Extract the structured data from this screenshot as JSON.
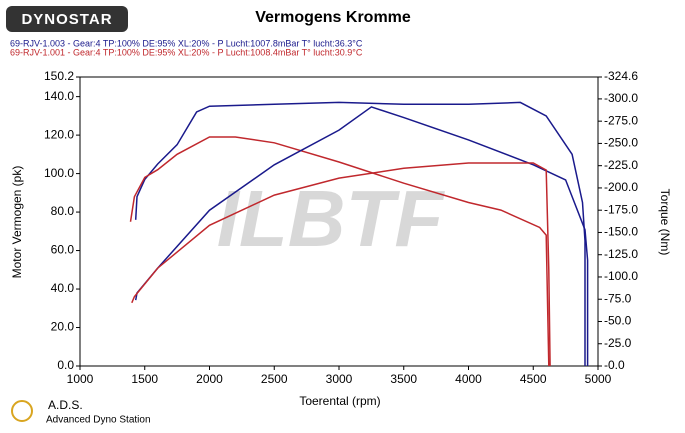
{
  "header": {
    "logo": "DYNOSTAR",
    "legend_lines": [
      {
        "text": "69-RJV-1.003 - Gear:4 TP:100% DE:95% XL:20%   - P Lucht:1007.8mBar T° lucht:36.3°C",
        "color": "#1a1a8c"
      },
      {
        "text": "69-RJV-1.001 - Gear:4 TP:100% DE:95% XL:20%   - P Lucht:1008.4mBar T° lucht:30.9°C",
        "color": "#c0282d"
      }
    ]
  },
  "footer": {
    "brand": "A.D.S.",
    "subtitle": "Advanced Dyno Station"
  },
  "watermark": "ILBTF",
  "chart_data": {
    "type": "line",
    "title": "Vermogens Kromme",
    "xlabel": "Toerental (rpm)",
    "ylabel": "Motor Vermogen (pk)",
    "y2label": "Torque (Nm)",
    "xlim": [
      1000,
      5000
    ],
    "xticks": [
      1000,
      1500,
      2000,
      2500,
      3000,
      3500,
      4000,
      4500,
      5000
    ],
    "ylim": [
      0,
      150.2
    ],
    "yticks": [
      {
        "value": 0,
        "label": "0.0"
      },
      {
        "value": 20,
        "label": "20.0"
      },
      {
        "value": 40,
        "label": "40.0"
      },
      {
        "value": 60,
        "label": "60.0"
      },
      {
        "value": 80,
        "label": "80.0"
      },
      {
        "value": 100,
        "label": "100.0"
      },
      {
        "value": 120,
        "label": "120.0"
      },
      {
        "value": 140,
        "label": "140.0"
      },
      {
        "value": 150.2,
        "label": "150.2"
      }
    ],
    "y2lim": [
      0,
      -324.6
    ],
    "y2ticks": [
      {
        "value": 0,
        "label": "-0.0"
      },
      {
        "value": -25,
        "label": "-25.0"
      },
      {
        "value": -50,
        "label": "-50.0"
      },
      {
        "value": -75,
        "label": "-75.0"
      },
      {
        "value": -100,
        "label": "-100.0"
      },
      {
        "value": -125,
        "label": "-125.0"
      },
      {
        "value": -150,
        "label": "-150.0"
      },
      {
        "value": -175,
        "label": "-175.0"
      },
      {
        "value": -200,
        "label": "-200.0"
      },
      {
        "value": -225,
        "label": "-225.0"
      },
      {
        "value": -250,
        "label": "-250.0"
      },
      {
        "value": -275,
        "label": "-275.0"
      },
      {
        "value": -300,
        "label": "-300.0"
      },
      {
        "value": -324.6,
        "label": "-324.6"
      }
    ],
    "series": [
      {
        "color": "#1a1a8c",
        "x": [
          1430,
          1440,
          1500,
          1600,
          1750,
          1900,
          2000,
          2500,
          3000,
          3500,
          4000,
          4400,
          4600,
          4800,
          4880,
          4900,
          4900
        ],
        "values": [
          76,
          88,
          97,
          105,
          115,
          132,
          135,
          136,
          137,
          136,
          136,
          137,
          130,
          110,
          85,
          65,
          0
        ]
      },
      {
        "color": "#c0282d",
        "x": [
          1390,
          1420,
          1500,
          1600,
          1750,
          2000,
          2200,
          2500,
          3000,
          3500,
          4000,
          4250,
          4550,
          4600,
          4620
        ],
        "values": [
          75,
          88,
          98,
          102,
          110,
          119,
          119,
          116,
          106,
          95,
          85,
          81,
          72,
          68,
          0
        ]
      },
      {
        "color": "#1a1a8c",
        "axis": "y2",
        "x": [
          1430,
          1440,
          1600,
          2000,
          2500,
          3000,
          3250,
          3500,
          4000,
          4500,
          4750,
          4900,
          4920,
          4920
        ],
        "values": [
          -74,
          -82,
          -110,
          -175,
          -226,
          -265,
          -291,
          -279,
          -254,
          -226,
          -209,
          -153,
          -119,
          0
        ]
      },
      {
        "color": "#c0282d",
        "axis": "y2",
        "x": [
          1400,
          1420,
          1600,
          2000,
          2500,
          3000,
          3500,
          4000,
          4500,
          4600,
          4620,
          4630
        ],
        "values": [
          -71,
          -78,
          -110,
          -158,
          -192,
          -211,
          -222,
          -228,
          -228,
          -220,
          -108,
          0
        ]
      }
    ]
  }
}
